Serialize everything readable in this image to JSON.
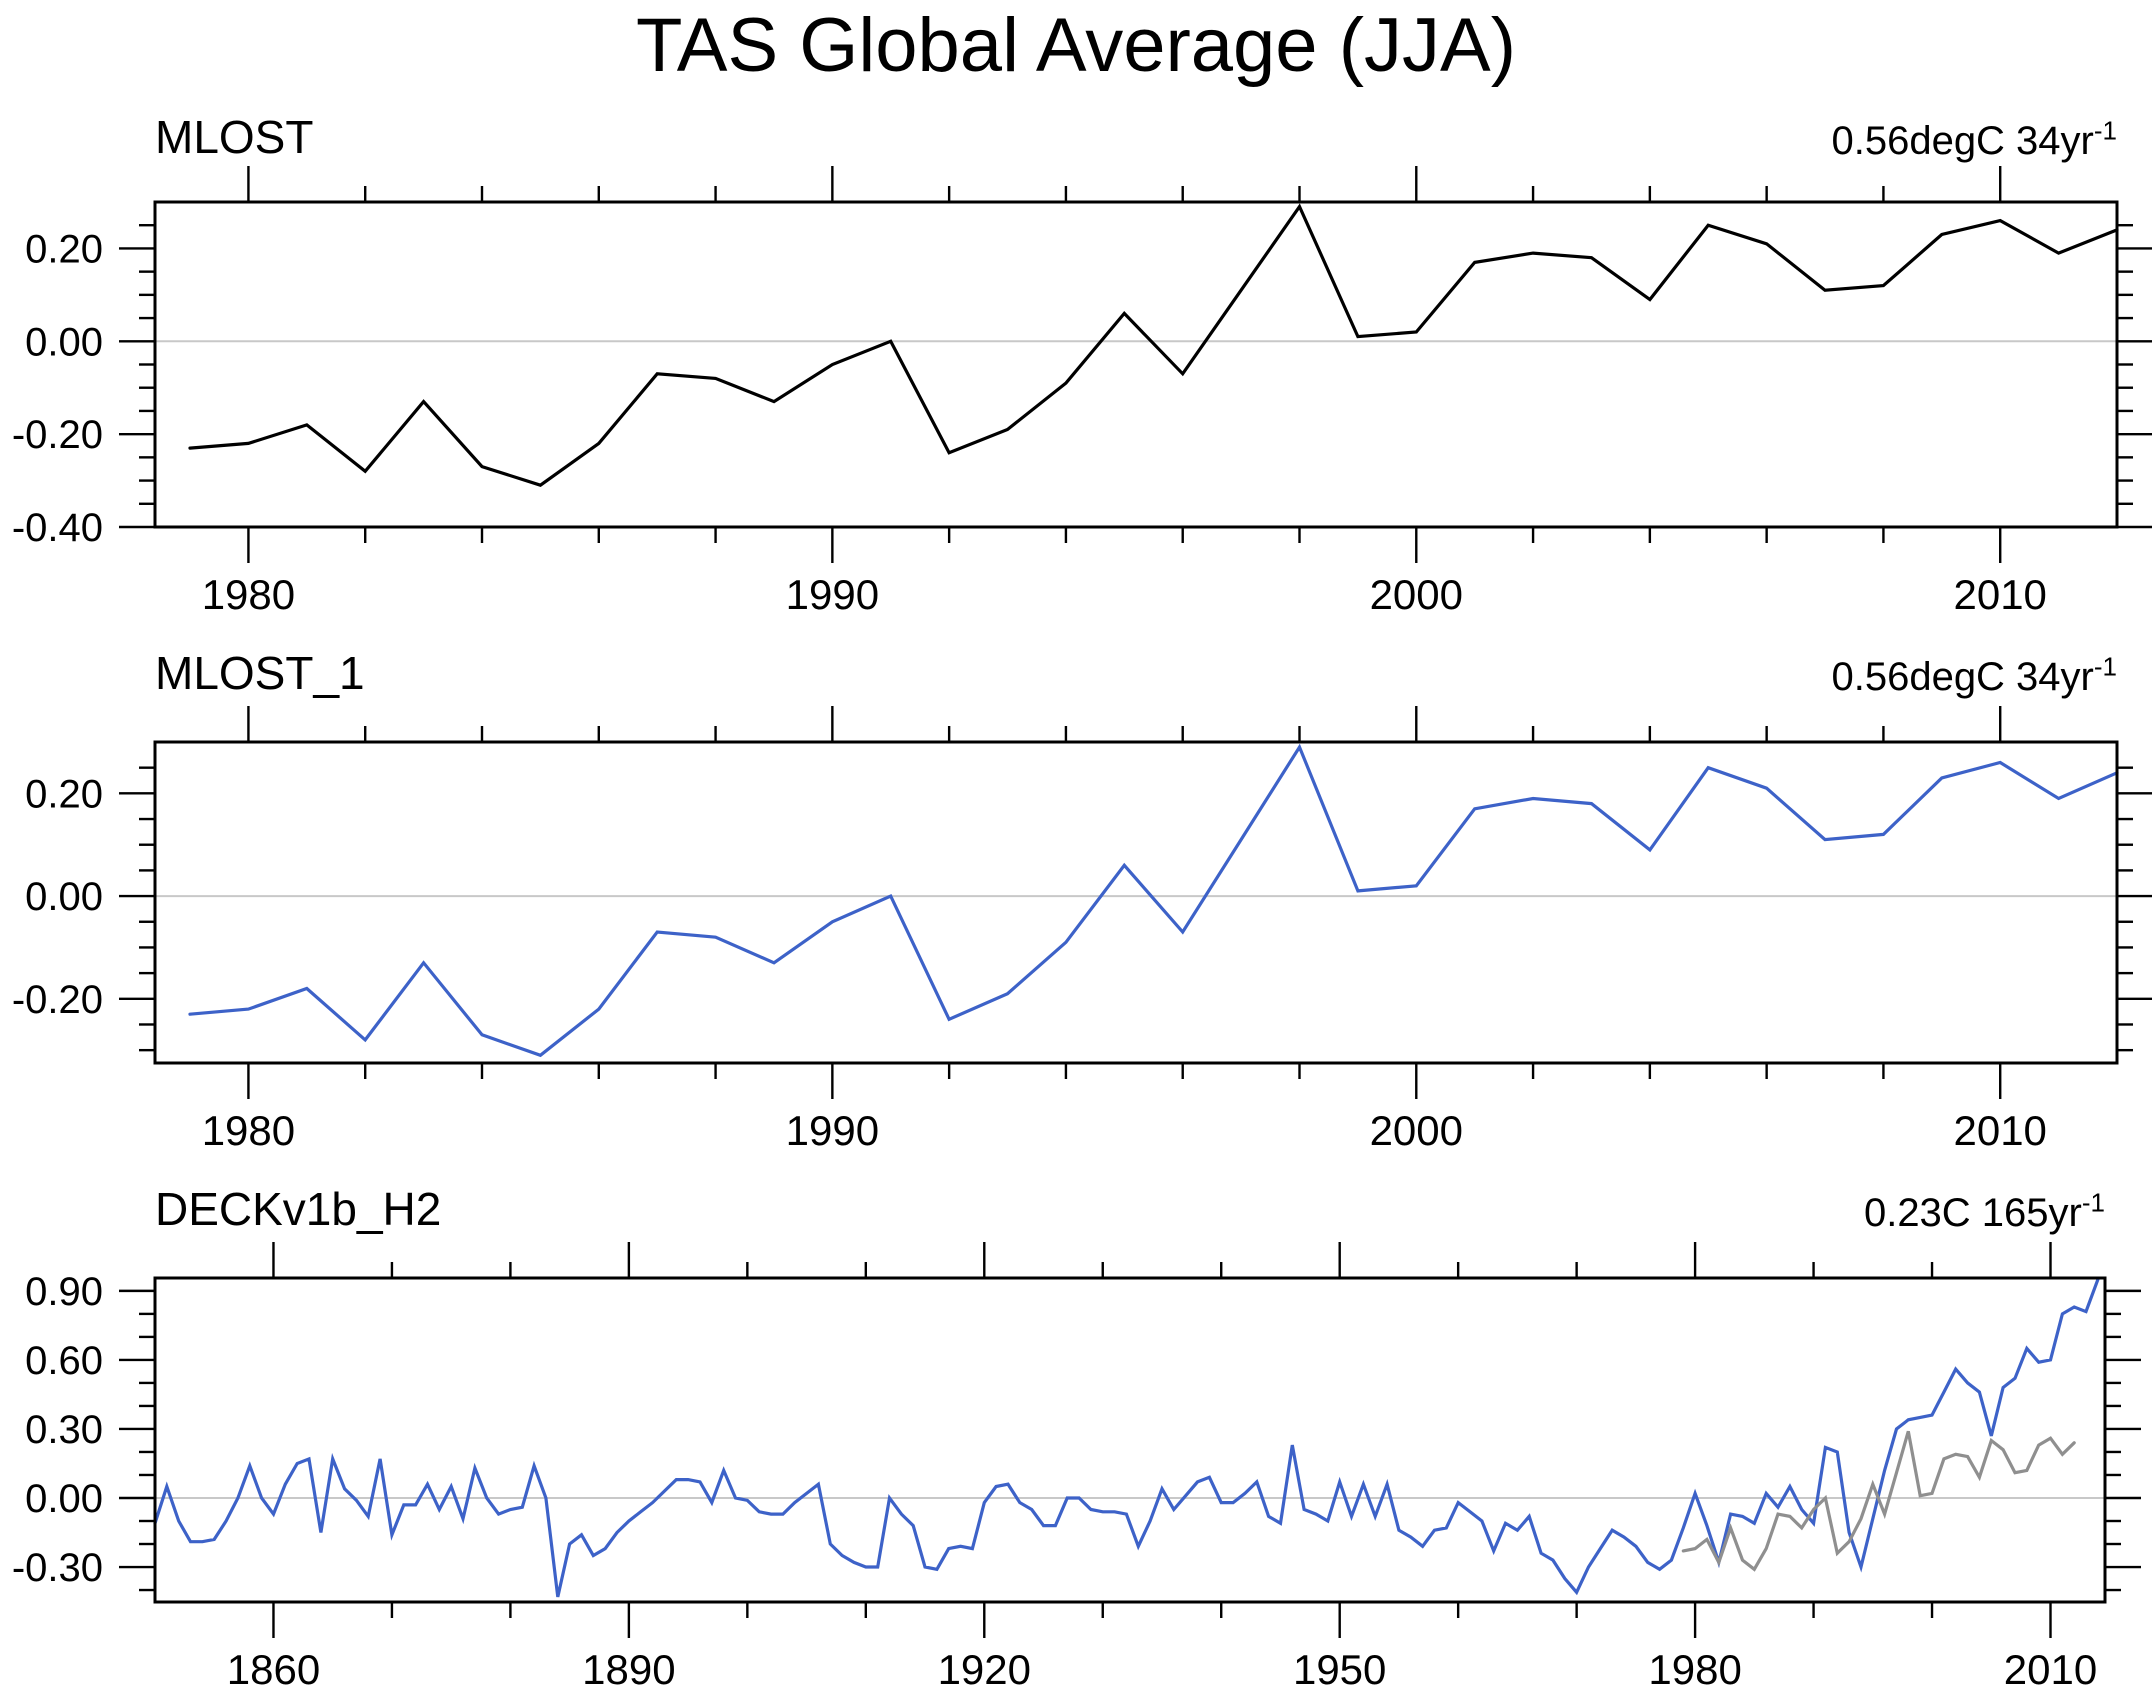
{
  "title": "TAS Global Average (JJA)",
  "colors": {
    "black_line": "#000000",
    "blue_line": "#3d62c8",
    "gray_line": "#8f8f8f",
    "grid_line": "#c8c8c8",
    "axis": "#000000"
  },
  "chart_data": {
    "type": "line",
    "title": "TAS Global Average (JJA)",
    "xlabel": "",
    "ylabel": "",
    "grid": "zero-line only",
    "panels": [
      {
        "label": "MLOST",
        "annotation": "0.56degC 34yr",
        "annotation_sup": "-1",
        "xlim": [
          1978.4,
          2012
        ],
        "ylim": [
          -0.4,
          0.3
        ],
        "x_major_ticks": [
          1980,
          1990,
          2000,
          2010
        ],
        "x_tick_labels": [
          "1980",
          "1990",
          "2000",
          "2010"
        ],
        "x_minor_step": 2,
        "y_major_ticks": [
          0.2,
          0.0,
          -0.2,
          -0.4
        ],
        "y_tick_labels": [
          "0.20",
          "0.00",
          "-0.20",
          "-0.40"
        ],
        "y_minor_step": 0.05,
        "series": [
          {
            "name": "MLOST",
            "color_key": "black_line",
            "start_year": 1979,
            "step": 1,
            "values": [
              -0.23,
              -0.22,
              -0.18,
              -0.28,
              -0.13,
              -0.27,
              -0.31,
              -0.22,
              -0.07,
              -0.08,
              -0.13,
              -0.05,
              0.0,
              -0.24,
              -0.19,
              -0.09,
              0.06,
              -0.07,
              0.11,
              0.29,
              0.01,
              0.02,
              0.17,
              0.19,
              0.18,
              0.09,
              0.25,
              0.21,
              0.11,
              0.12,
              0.23,
              0.26,
              0.19,
              0.24
            ]
          }
        ]
      },
      {
        "label": "MLOST_1",
        "annotation": "0.56degC 34yr",
        "annotation_sup": "-1",
        "xlim": [
          1978.4,
          2012
        ],
        "ylim": [
          -0.325,
          0.3
        ],
        "x_major_ticks": [
          1980,
          1990,
          2000,
          2010
        ],
        "x_tick_labels": [
          "1980",
          "1990",
          "2000",
          "2010"
        ],
        "x_minor_step": 2,
        "y_major_ticks": [
          0.2,
          0.0,
          -0.2
        ],
        "y_tick_labels": [
          "0.20",
          "0.00",
          "-0.20"
        ],
        "y_minor_step": 0.05,
        "series": [
          {
            "name": "MLOST_1",
            "color_key": "blue_line",
            "start_year": 1979,
            "step": 1,
            "values": [
              -0.23,
              -0.22,
              -0.18,
              -0.28,
              -0.13,
              -0.27,
              -0.31,
              -0.22,
              -0.07,
              -0.08,
              -0.13,
              -0.05,
              0.0,
              -0.24,
              -0.19,
              -0.09,
              0.06,
              -0.07,
              0.11,
              0.29,
              0.01,
              0.02,
              0.17,
              0.19,
              0.18,
              0.09,
              0.25,
              0.21,
              0.11,
              0.12,
              0.23,
              0.26,
              0.19,
              0.24
            ]
          }
        ]
      },
      {
        "label": "DECKv1b_H2",
        "annotation": "0.23C 165yr",
        "annotation_sup": "-1",
        "xlim": [
          1850,
          2014.6
        ],
        "ylim": [
          -0.452,
          0.956
        ],
        "x_major_ticks": [
          1860,
          1890,
          1920,
          1950,
          1980,
          2010
        ],
        "x_tick_labels": [
          "1860",
          "1890",
          "1920",
          "1950",
          "1980",
          "2010"
        ],
        "x_minor_step": 10,
        "y_major_ticks": [
          0.9,
          0.6,
          0.3,
          0.0,
          -0.3
        ],
        "y_tick_labels": [
          "0.90",
          "0.60",
          "0.30",
          "0.00",
          "-0.30"
        ],
        "y_minor_step": 0.1,
        "series": [
          {
            "name": "DECKv1b_H2",
            "color_key": "blue_line",
            "start_year": 1850,
            "step": 1,
            "values": [
              -0.11,
              0.05,
              -0.1,
              -0.19,
              -0.19,
              -0.18,
              -0.1,
              0.0,
              0.14,
              0.0,
              -0.07,
              0.06,
              0.15,
              0.17,
              -0.15,
              0.17,
              0.04,
              -0.01,
              -0.08,
              0.17,
              -0.16,
              -0.03,
              -0.03,
              0.06,
              -0.05,
              0.05,
              -0.09,
              0.13,
              0.0,
              -0.07,
              -0.05,
              -0.04,
              0.14,
              0.0,
              -0.43,
              -0.2,
              -0.16,
              -0.25,
              -0.22,
              -0.15,
              -0.1,
              -0.06,
              -0.02,
              0.03,
              0.08,
              0.08,
              0.07,
              -0.02,
              0.12,
              0.0,
              -0.01,
              -0.06,
              -0.07,
              -0.07,
              -0.02,
              0.02,
              0.06,
              -0.2,
              -0.25,
              -0.28,
              -0.3,
              -0.3,
              0.0,
              -0.07,
              -0.12,
              -0.3,
              -0.31,
              -0.22,
              -0.21,
              -0.22,
              -0.02,
              0.05,
              0.06,
              -0.02,
              -0.05,
              -0.12,
              -0.12,
              0.0,
              0.0,
              -0.05,
              -0.06,
              -0.06,
              -0.07,
              -0.21,
              -0.1,
              0.04,
              -0.05,
              0.01,
              0.07,
              0.09,
              -0.02,
              -0.02,
              0.02,
              0.07,
              -0.08,
              -0.11,
              0.23,
              -0.05,
              -0.07,
              -0.1,
              0.07,
              -0.08,
              0.06,
              -0.08,
              0.06,
              -0.14,
              -0.17,
              -0.21,
              -0.14,
              -0.13,
              -0.02,
              -0.06,
              -0.1,
              -0.23,
              -0.11,
              -0.14,
              -0.08,
              -0.24,
              -0.27,
              -0.35,
              -0.41,
              -0.3,
              -0.22,
              -0.14,
              -0.17,
              -0.21,
              -0.28,
              -0.31,
              -0.27,
              -0.13,
              0.02,
              -0.12,
              -0.28,
              -0.07,
              -0.08,
              -0.11,
              0.02,
              -0.04,
              0.05,
              -0.05,
              -0.11,
              0.22,
              0.2,
              -0.15,
              -0.3,
              -0.09,
              0.12,
              0.3,
              0.34,
              0.35,
              0.36,
              0.46,
              0.56,
              0.5,
              0.46,
              0.27,
              0.48,
              0.52,
              0.65,
              0.59,
              0.6,
              0.8,
              0.83,
              0.81,
              0.95
            ]
          },
          {
            "name": "MLOST observations overlay",
            "color_key": "gray_line",
            "start_year": 1979,
            "step": 1,
            "values": [
              -0.23,
              -0.22,
              -0.18,
              -0.28,
              -0.13,
              -0.27,
              -0.31,
              -0.22,
              -0.07,
              -0.08,
              -0.13,
              -0.05,
              0.0,
              -0.24,
              -0.19,
              -0.09,
              0.06,
              -0.07,
              0.11,
              0.29,
              0.01,
              0.02,
              0.17,
              0.19,
              0.18,
              0.09,
              0.25,
              0.21,
              0.11,
              0.12,
              0.23,
              0.26,
              0.19,
              0.24
            ]
          }
        ]
      }
    ]
  }
}
